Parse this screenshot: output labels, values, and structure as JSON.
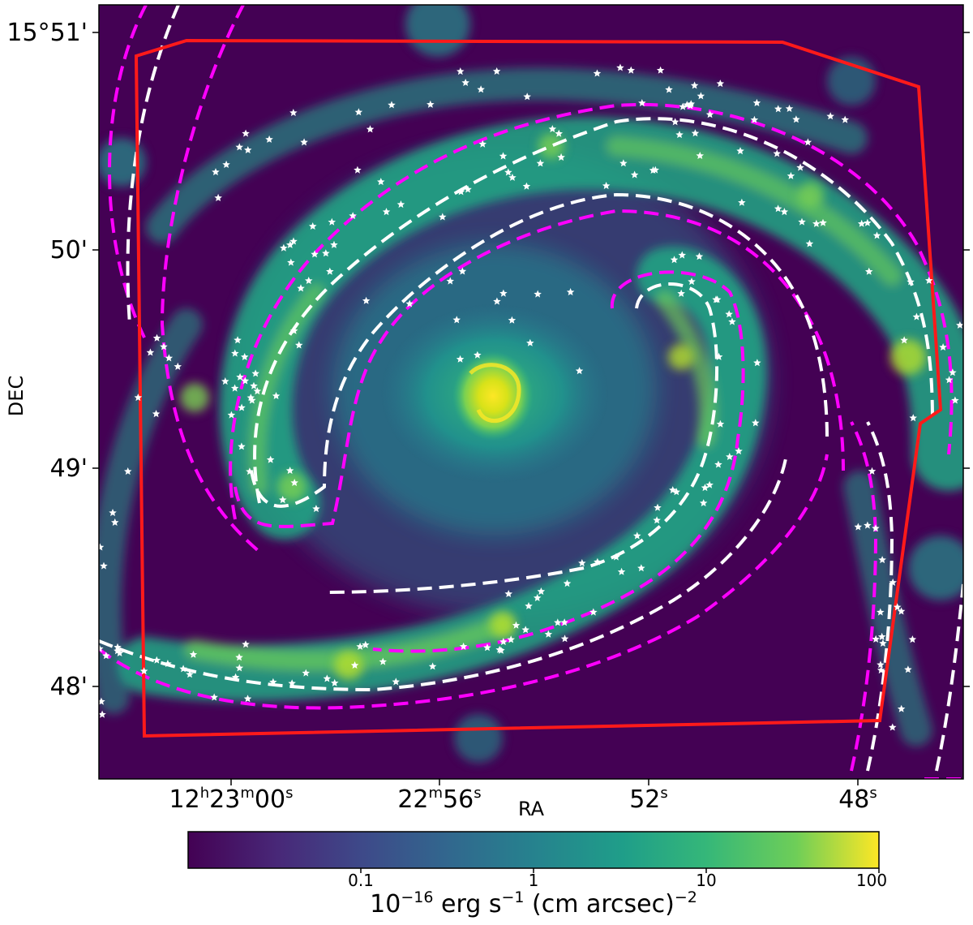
{
  "image": {
    "kind": "narrowband emission-line map of a face-on spiral galaxy",
    "colormap": "viridis",
    "colors": {
      "background_low": "#440154",
      "mid_dark": "#31688e",
      "mid": "#21918c",
      "mid_bright": "#35b779",
      "high": "#b5de2b",
      "peak": "#fde725",
      "region_outline": "#ff1a1a",
      "arm_mask_outer": "#ff00ff",
      "arm_mask_inner": "#ffffff",
      "source_markers": "#ffffff"
    },
    "overlays": {
      "footprint": "red solid polygon",
      "arm_regions": "magenta and white dashed contours",
      "sources": "white star markers"
    }
  },
  "axes": {
    "xlabel": "RA",
    "ylabel": "DEC",
    "x_ticks": [
      {
        "main": "12",
        "s1": "h",
        "mid": "23",
        "s2": "m",
        "tail": "00",
        "s3": "s"
      },
      {
        "main": "22",
        "s1": "m",
        "mid": "56",
        "s2": "s",
        "tail": "",
        "s3": ""
      },
      {
        "main": "52",
        "s1": "s",
        "mid": "",
        "s2": "",
        "tail": "",
        "s3": ""
      },
      {
        "main": "48",
        "s1": "s",
        "mid": "",
        "s2": "",
        "tail": "",
        "s3": ""
      }
    ],
    "y_ticks": [
      "15°51'",
      "50'",
      "49'",
      "48'"
    ]
  },
  "colorbar": {
    "scale": "log",
    "range": [
      0.01,
      100
    ],
    "ticks": [
      "0.1",
      "1",
      "10",
      "100"
    ],
    "label": {
      "base": "10",
      "exp1": "−16",
      "mid": " erg s",
      "exp2": "−1",
      "mid2": " (cm arcsec)",
      "exp3": "−2"
    }
  }
}
